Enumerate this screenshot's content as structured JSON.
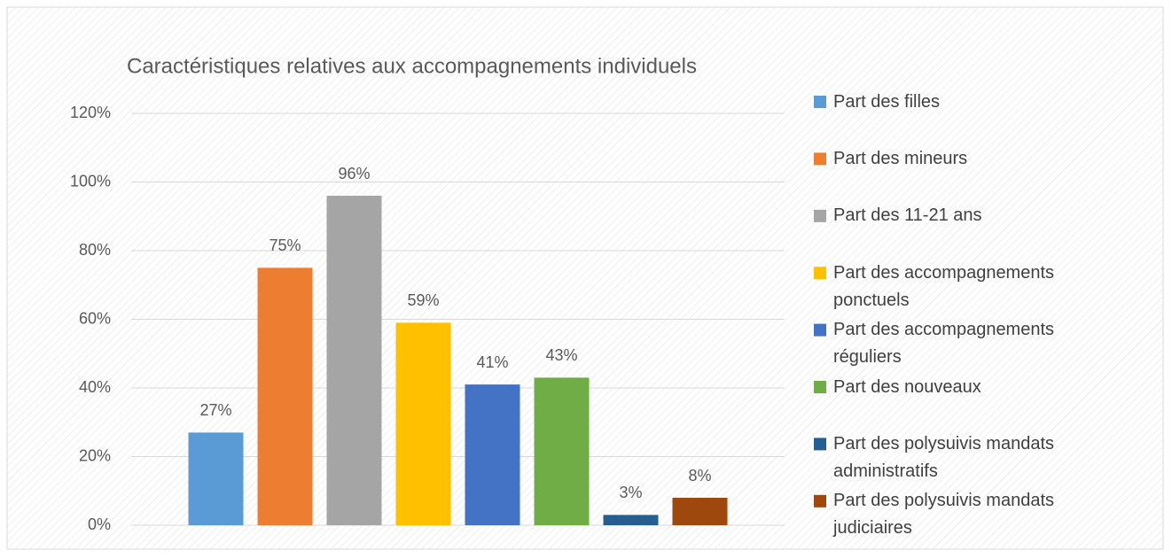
{
  "chart_data": {
    "type": "bar",
    "title": "Caractéristiques relatives aux accompagnements individuels",
    "categories": [
      null
    ],
    "series": [
      {
        "name": "Part des filles",
        "color": "#5b9bd5",
        "values": [
          27
        ],
        "value_labels": [
          "27%"
        ]
      },
      {
        "name": "Part des mineurs",
        "color": "#ed7d31",
        "values": [
          75
        ],
        "value_labels": [
          "75%"
        ]
      },
      {
        "name": "Part des 11-21 ans",
        "color": "#a5a5a5",
        "values": [
          96
        ],
        "value_labels": [
          "96%"
        ]
      },
      {
        "name": "Part des accompagnements ponctuels",
        "color": "#ffc000",
        "values": [
          59
        ],
        "value_labels": [
          "59%"
        ]
      },
      {
        "name": "Part des accompagnements réguliers",
        "color": "#4472c4",
        "values": [
          41
        ],
        "value_labels": [
          "41%"
        ]
      },
      {
        "name": "Part des nouveaux",
        "color": "#70ad47",
        "values": [
          43
        ],
        "value_labels": [
          "43%"
        ]
      },
      {
        "name": "Part des polysuivis mandats administratifs",
        "color": "#255e91",
        "values": [
          3
        ],
        "value_labels": [
          "3%"
        ]
      },
      {
        "name": "Part des polysuivis mandats judiciaires",
        "color": "#9e480e",
        "values": [
          8
        ],
        "value_labels": [
          "8%"
        ]
      }
    ],
    "ylim": [
      0,
      120
    ],
    "yticks": [
      {
        "value": 0,
        "label": "0%"
      },
      {
        "value": 20,
        "label": "20%"
      },
      {
        "value": 40,
        "label": "40%"
      },
      {
        "value": 60,
        "label": "60%"
      },
      {
        "value": 80,
        "label": "80%"
      },
      {
        "value": 100,
        "label": "100%"
      },
      {
        "value": 120,
        "label": "120%"
      }
    ],
    "grid": true,
    "legend": "right"
  }
}
